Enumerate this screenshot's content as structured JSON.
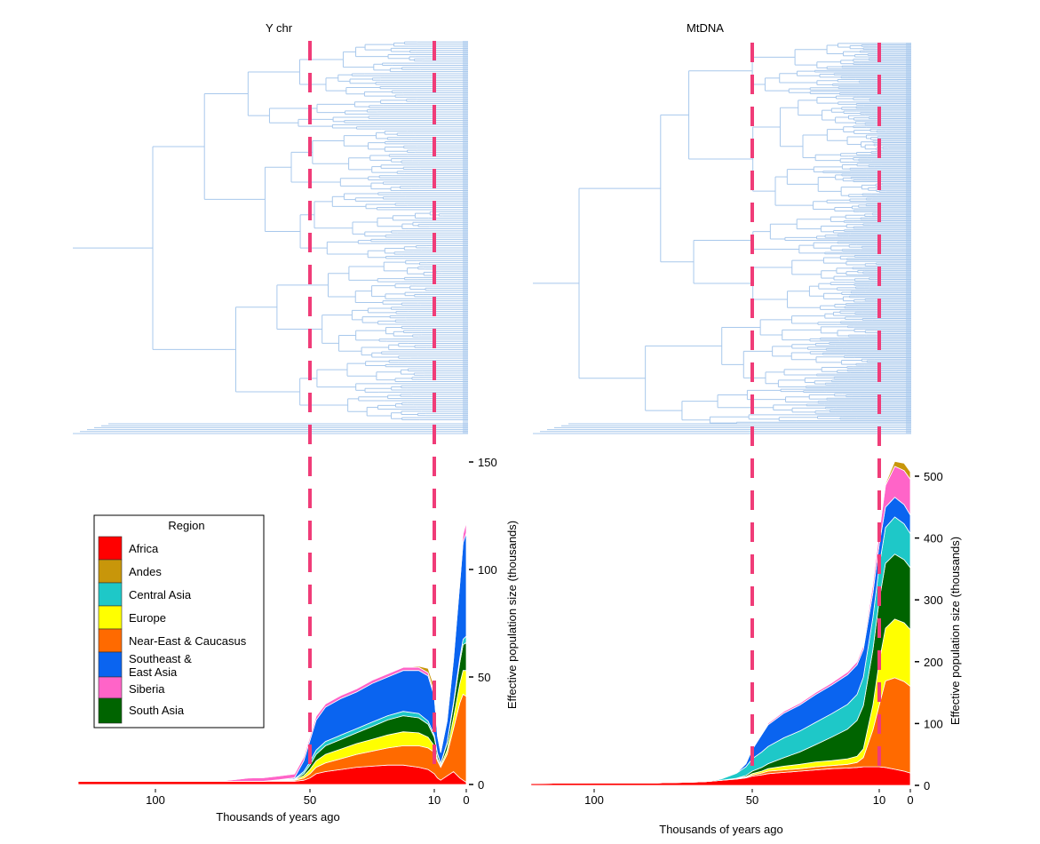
{
  "chart_data": [
    {
      "id": "ychr",
      "type": "area",
      "title": "Y chr",
      "xlabel": "Thousands of years ago",
      "ylabel": "Effective population size (thousands)",
      "x_axis": "reversed, time before present",
      "xlim": [
        125,
        0
      ],
      "ylim": [
        0,
        155
      ],
      "xticks": [
        100,
        50,
        10,
        0
      ],
      "yticks": [
        0,
        50,
        100,
        150
      ],
      "x": [
        125,
        100,
        80,
        74,
        70,
        65,
        60,
        55,
        52,
        50,
        48,
        45,
        40,
        35,
        30,
        25,
        20,
        15,
        12,
        10,
        9,
        8,
        6,
        4,
        2,
        1,
        0
      ],
      "series": [
        {
          "name": "Africa",
          "color": "#ff0000",
          "values": [
            1.5,
            1.5,
            1.5,
            1.5,
            1.5,
            1.5,
            1.5,
            1.5,
            2,
            3,
            5,
            6,
            7,
            8,
            8.5,
            9,
            9,
            8,
            7,
            5,
            3,
            2,
            4,
            6,
            3,
            2,
            1
          ]
        },
        {
          "name": "Near-East & Caucasus",
          "color": "#ff6a00",
          "values": [
            0,
            0,
            0,
            0,
            0,
            0,
            0.2,
            0.4,
            1,
            2,
            3,
            4,
            5,
            6,
            7,
            8,
            9,
            10,
            10,
            10,
            8,
            6,
            10,
            20,
            35,
            40,
            40
          ]
        },
        {
          "name": "Europe",
          "color": "#ffff00",
          "values": [
            0,
            0,
            0,
            0,
            0,
            0,
            0.1,
            0.2,
            1,
            2,
            3,
            4,
            4.5,
            5,
            5.5,
            6,
            6.5,
            6,
            5,
            3,
            1,
            0.5,
            2,
            5,
            9,
            11,
            12
          ]
        },
        {
          "name": "South Asia",
          "color": "#006400",
          "values": [
            0,
            0,
            0,
            0,
            0,
            0,
            0.1,
            0.3,
            1,
            2,
            3,
            4,
            4.5,
            5,
            6,
            7,
            7.5,
            7,
            6,
            4,
            2,
            1,
            3,
            6,
            10,
            12,
            13
          ]
        },
        {
          "name": "Central Asia",
          "color": "#1ec8c8",
          "values": [
            0,
            0,
            0,
            0,
            0,
            0,
            0.1,
            0.2,
            1,
            1.5,
            2,
            2,
            2,
            2,
            2,
            2,
            2,
            2,
            1.5,
            1,
            0.5,
            0.3,
            0.5,
            1,
            2,
            2.5,
            3
          ]
        },
        {
          "name": "Southeast & East Asia",
          "color": "#0a64f0",
          "values": [
            0,
            0,
            0,
            0,
            0,
            0,
            0.2,
            0.5,
            5,
            10,
            14,
            16,
            17,
            17,
            18,
            18,
            19,
            20,
            21,
            18,
            8,
            5,
            10,
            20,
            35,
            45,
            48
          ]
        },
        {
          "name": "Siberia",
          "color": "#ff64c8",
          "values": [
            0,
            0,
            0,
            0.8,
            1.5,
            1.7,
            1.8,
            1.8,
            1.8,
            1.8,
            1.8,
            1.5,
            1.5,
            1.5,
            1.5,
            1.5,
            1.5,
            1.5,
            1.5,
            1.5,
            1,
            0.5,
            1,
            2,
            3,
            4,
            5
          ]
        },
        {
          "name": "Andes",
          "color": "#c8960a",
          "values": [
            0,
            0,
            0,
            0,
            0,
            0,
            0,
            0,
            0,
            0,
            0,
            0,
            0,
            0,
            0,
            0,
            0,
            0.5,
            2,
            3,
            1.5,
            0.5,
            0.5,
            0.5,
            0.5,
            0.5,
            0.5
          ]
        }
      ],
      "reference_lines": [
        50,
        10
      ]
    },
    {
      "id": "mtdna",
      "type": "area",
      "title": "MtDNA",
      "xlabel": "Thousands of years ago",
      "ylabel": "Effective population size (thousands)",
      "x_axis": "reversed, time before present",
      "xlim": [
        120,
        0
      ],
      "ylim": [
        0,
        535
      ],
      "xticks": [
        100,
        50,
        10,
        0
      ],
      "yticks": [
        0,
        100,
        200,
        300,
        400,
        500
      ],
      "x": [
        120,
        100,
        80,
        70,
        65,
        60,
        55,
        52,
        50,
        47,
        45,
        40,
        35,
        30,
        25,
        20,
        17,
        15,
        12,
        10,
        8,
        5,
        2,
        0
      ],
      "series": [
        {
          "name": "Africa",
          "color": "#ff0000",
          "values": [
            3,
            4,
            4,
            5,
            6,
            8,
            10,
            12,
            15,
            17,
            19,
            21,
            23,
            25,
            27,
            28,
            29,
            30,
            30,
            30,
            29,
            26,
            23,
            20
          ]
        },
        {
          "name": "Near-East & Caucasus",
          "color": "#ff6a00",
          "values": [
            0,
            0,
            0,
            0,
            0,
            0,
            0.5,
            1,
            2,
            3,
            4,
            4,
            4,
            5,
            5,
            6,
            8,
            15,
            60,
            100,
            140,
            148,
            145,
            140
          ]
        },
        {
          "name": "Europe",
          "color": "#ffff00",
          "values": [
            0,
            0,
            0,
            0,
            0,
            0,
            0.5,
            1,
            2,
            3,
            4,
            6,
            7,
            8,
            8,
            9,
            10,
            14,
            40,
            70,
            85,
            95,
            95,
            92
          ]
        },
        {
          "name": "South Asia",
          "color": "#006400",
          "values": [
            0,
            0,
            0,
            0,
            0,
            0,
            0.5,
            2,
            4,
            6,
            8,
            14,
            20,
            28,
            38,
            48,
            58,
            70,
            90,
            100,
            105,
            105,
            102,
            100
          ]
        },
        {
          "name": "Central Asia",
          "color": "#1ec8c8",
          "values": [
            0,
            0,
            0,
            0,
            0.5,
            2,
            8,
            14,
            20,
            25,
            28,
            32,
            34,
            36,
            38,
            40,
            42,
            46,
            52,
            55,
            58,
            60,
            58,
            55
          ]
        },
        {
          "name": "Southeast & East Asia",
          "color": "#0a64f0",
          "values": [
            0,
            0,
            0,
            0,
            0,
            0,
            0.5,
            5,
            15,
            28,
            35,
            40,
            42,
            45,
            46,
            48,
            48,
            45,
            40,
            35,
            33,
            32,
            31,
            30
          ]
        },
        {
          "name": "Siberia",
          "color": "#ff64c8",
          "values": [
            0,
            0,
            0,
            0,
            0,
            0,
            0.5,
            1,
            1.5,
            2,
            2.5,
            3,
            3,
            3.5,
            4,
            4.5,
            5,
            6,
            14,
            20,
            35,
            50,
            55,
            58
          ]
        },
        {
          "name": "Andes",
          "color": "#c8960a",
          "values": [
            0,
            0,
            0,
            0,
            0,
            0,
            0,
            0,
            0,
            0,
            0,
            0,
            0,
            0,
            0,
            0,
            0,
            0.5,
            1,
            1.5,
            3,
            8,
            12,
            12
          ]
        }
      ],
      "reference_lines": [
        50,
        10
      ]
    }
  ],
  "legend": {
    "title": "Region",
    "items": [
      {
        "label": "Africa",
        "color": "#ff0000"
      },
      {
        "label": "Andes",
        "color": "#c8960a"
      },
      {
        "label": "Central Asia",
        "color": "#1ec8c8"
      },
      {
        "label": "Europe",
        "color": "#ffff00"
      },
      {
        "label": "Near-East & Caucasus",
        "color": "#ff6a00"
      },
      {
        "label": "Southeast &\nEast Asia",
        "color": "#0a64f0"
      },
      {
        "label": "Siberia",
        "color": "#ff64c8"
      },
      {
        "label": "South Asia",
        "color": "#006400"
      }
    ]
  },
  "tree_color": "#a8c8ec",
  "dash_color": "#f03c78"
}
